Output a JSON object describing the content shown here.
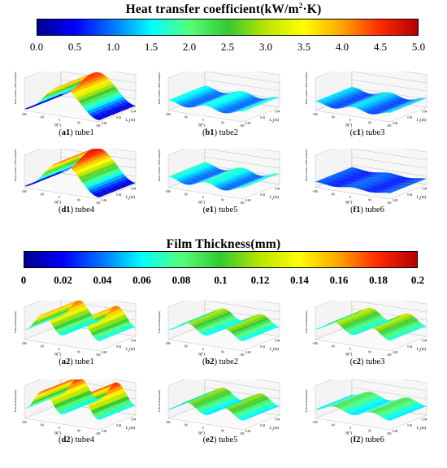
{
  "colorbars": [
    {
      "title": "Heat transfer coefficient(kW/m",
      "title_sup": "2",
      "title_tail": "·K)",
      "ticks": [
        "0.0",
        "0.5",
        "1.0",
        "1.5",
        "2.0",
        "2.5",
        "3.0",
        "3.5",
        "4.0",
        "4.5",
        "5.0"
      ],
      "range": [
        0,
        5
      ]
    },
    {
      "title": "Film Thickness(mm)",
      "ticks": [
        "0",
        "0.02",
        "0.04",
        "0.06",
        "0.08",
        "0.1",
        "0.12",
        "0.14",
        "0.16",
        "0.18",
        "0.2"
      ],
      "range": [
        0,
        0.2
      ]
    }
  ],
  "colormap": [
    "#00008f",
    "#0000ff",
    "#0078ff",
    "#00ffff",
    "#55ff7a",
    "#33c933",
    "#b8e600",
    "#ffff00",
    "#ffa500",
    "#ff2a00",
    "#b40000"
  ],
  "panels": [
    {
      "id": "a1",
      "label_prefix": "a1",
      "label_suffix": " tube1",
      "zlabel": "Heat transfer coefficient(kW/m²·K)",
      "peak": 0.9,
      "base": 0.05,
      "waves": 1,
      "invert": true
    },
    {
      "id": "b1",
      "label_prefix": "b1",
      "label_suffix": " tube2",
      "zlabel": "Heat transfer coefficient(kW/m²·K)",
      "peak": 0.32,
      "base": 0.18,
      "waves": 2,
      "invert": false
    },
    {
      "id": "c1",
      "label_prefix": "c1",
      "label_suffix": " tube3",
      "zlabel": "Heat transfer coefficient(kW/m²·K)",
      "peak": 0.28,
      "base": 0.15,
      "waves": 2,
      "invert": false
    },
    {
      "id": "d1",
      "label_prefix": "d1",
      "label_suffix": " tube4",
      "zlabel": "Heat transfer coefficient(kW/m²·K)",
      "peak": 0.95,
      "base": 0.05,
      "waves": 1,
      "invert": true
    },
    {
      "id": "e1",
      "label_prefix": "e1",
      "label_suffix": " tube5",
      "zlabel": "Heat transfer coefficient(kW/m²·K)",
      "peak": 0.34,
      "base": 0.18,
      "waves": 2,
      "invert": false
    },
    {
      "id": "f1",
      "label_prefix": "f1",
      "label_suffix": " tube6",
      "zlabel": "Heat transfer coefficient(kW/m²·K)",
      "peak": 0.18,
      "base": 0.12,
      "waves": 2,
      "invert": false
    },
    {
      "id": "a2",
      "label_prefix": "a2",
      "label_suffix": " tube1",
      "zlabel": "Film thickness(mm)",
      "peak": 0.85,
      "base": 0.3,
      "waves": 2,
      "invert": true
    },
    {
      "id": "b2",
      "label_prefix": "b2",
      "label_suffix": " tube2",
      "zlabel": "Film thickness(mm)",
      "peak": 0.6,
      "base": 0.3,
      "waves": 2,
      "invert": true
    },
    {
      "id": "c2",
      "label_prefix": "c2",
      "label_suffix": " tube3",
      "zlabel": "Film thickness(mm)",
      "peak": 0.62,
      "base": 0.32,
      "waves": 2,
      "invert": true
    },
    {
      "id": "d2",
      "label_prefix": "d2",
      "label_suffix": " tube4",
      "zlabel": "Film thickness(mm)",
      "peak": 0.92,
      "base": 0.3,
      "waves": 2,
      "invert": true
    },
    {
      "id": "e2",
      "label_prefix": "e2",
      "label_suffix": " tube5",
      "zlabel": "Film thickness(mm)",
      "peak": 0.58,
      "base": 0.28,
      "waves": 2,
      "invert": true
    },
    {
      "id": "f2",
      "label_prefix": "f2",
      "label_suffix": " tube6",
      "zlabel": "Film thickness(mm)",
      "peak": 0.45,
      "base": 0.28,
      "waves": 2,
      "invert": true
    }
  ],
  "axes": {
    "theta_label": "θ(°)",
    "theta_ticks": [
      "-180",
      "-135",
      "-90",
      "-45",
      "0",
      "45",
      "90",
      "135",
      "180"
    ],
    "l_label": "L",
    "l_sub": "z",
    "l_unit": "(m)",
    "l_ticks": [
      "0.00",
      "0.01",
      "0.02",
      "0.03",
      "0.04",
      "0.05"
    ]
  },
  "chart_data": [
    {
      "type": "heatmap",
      "title": "Heat transfer coefficient(kW/m²·K)",
      "colorbar_ticks": [
        0.0,
        0.5,
        1.0,
        1.5,
        2.0,
        2.5,
        3.0,
        3.5,
        4.0,
        4.5,
        5.0
      ],
      "zlim": [
        0,
        5
      ],
      "panels": [
        "(a1) tube1",
        "(b1) tube2",
        "(c1) tube3",
        "(d1) tube4",
        "(e1) tube5",
        "(f1) tube6"
      ],
      "x": {
        "label": "θ(°)",
        "range": [
          -180,
          180
        ]
      },
      "y": {
        "label": "Lz(m)",
        "range": [
          0.0,
          0.05
        ]
      }
    },
    {
      "type": "heatmap",
      "title": "Film Thickness(mm)",
      "colorbar_ticks": [
        0,
        0.02,
        0.04,
        0.06,
        0.08,
        0.1,
        0.12,
        0.14,
        0.16,
        0.18,
        0.2
      ],
      "zlim": [
        0,
        0.2
      ],
      "panels": [
        "(a2) tube1",
        "(b2) tube2",
        "(c2) tube3",
        "(d2) tube4",
        "(e2) tube5",
        "(f2) tube6"
      ],
      "x": {
        "label": "θ(°)",
        "range": [
          -180,
          180
        ]
      },
      "y": {
        "label": "Lz(m)",
        "range": [
          0.0,
          0.05
        ]
      }
    }
  ]
}
